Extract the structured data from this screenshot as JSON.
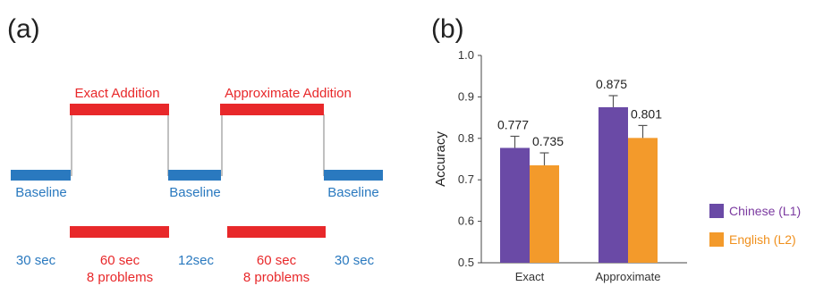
{
  "panel_a": {
    "label": "(a)",
    "blocks": [
      {
        "label": "Exact Addition",
        "duration": "60 sec",
        "problems": "8 problems"
      },
      {
        "label": "Approximate Addition",
        "duration": "60 sec",
        "problems": "8 problems"
      }
    ],
    "baselines": [
      {
        "label": "Baseline",
        "duration": "30 sec"
      },
      {
        "label": "Baseline",
        "duration": "12sec"
      },
      {
        "label": "Baseline",
        "duration": "30 sec"
      }
    ],
    "colors": {
      "task": "#e8282a",
      "baseline": "#2a79bf",
      "line": "#aaaaaa"
    }
  },
  "panel_b": {
    "label": "(b)"
  },
  "chart_data": {
    "type": "bar",
    "categories": [
      "Exact",
      "Approximate"
    ],
    "series": [
      {
        "name": "Chinese (L1)",
        "values": [
          0.777,
          0.875
        ],
        "errors": [
          0.028,
          0.028
        ],
        "labels": [
          "0.777",
          "0.875"
        ],
        "color": "#6a4aa6"
      },
      {
        "name": "English (L2)",
        "values": [
          0.735,
          0.801
        ],
        "errors": [
          0.03,
          0.03
        ],
        "labels": [
          "0.735",
          "0.801"
        ],
        "color": "#f39a2b"
      }
    ],
    "title": "",
    "xlabel": "",
    "ylabel": "Accuracy",
    "ylim": [
      0.5,
      1.0
    ],
    "yticks": [
      "0.5",
      "0.6",
      "0.7",
      "0.8",
      "0.9",
      "1.0"
    ],
    "grid": false,
    "legend": "right"
  }
}
